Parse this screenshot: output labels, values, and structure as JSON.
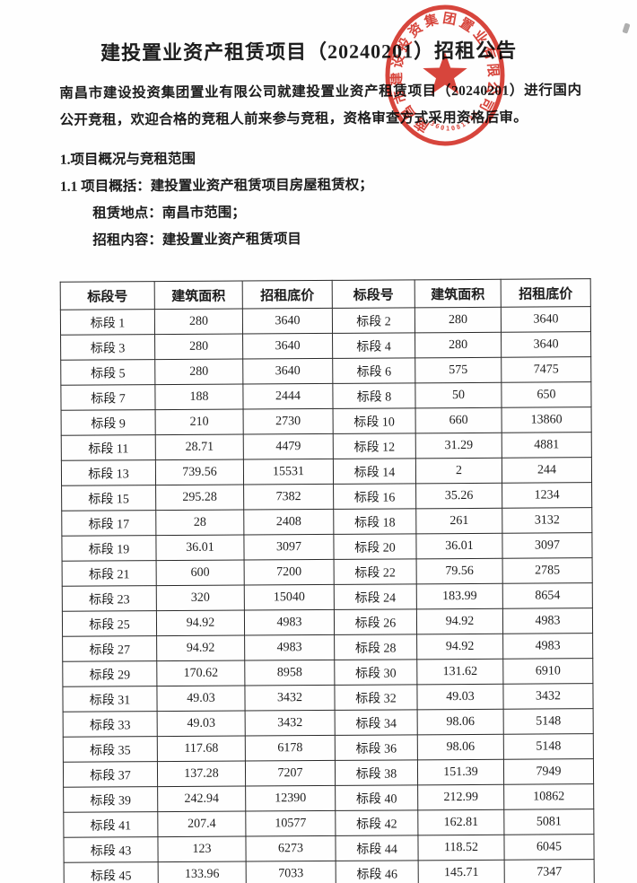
{
  "document": {
    "title": "建投置业资产租赁项目（20240201）招租公告",
    "intro": "南昌市建设投资集团置业有限公司就建投置业资产租赁项目（20240201）进行国内公开竞租，欢迎合格的竞租人前来参与竞租，资格审查方式采用资格后审。",
    "section_heading": "1.项目概况与竞租范围",
    "items": [
      "1.1 项目概括：建投置业资产租赁项目房屋租赁权；",
      "租赁地点：南昌市范围；",
      "招租内容：建投置业资产租赁项目"
    ]
  },
  "stamp": {
    "ring_text": "南昌市建设投资集团置业有限公司",
    "serial": "3601081185",
    "color": "#d5352b"
  },
  "table": {
    "headers": [
      "标段号",
      "建筑面积",
      "招租底价",
      "标段号",
      "建筑面积",
      "招租底价"
    ],
    "rows": [
      [
        "标段 1",
        "280",
        "3640",
        "标段 2",
        "280",
        "3640"
      ],
      [
        "标段 3",
        "280",
        "3640",
        "标段 4",
        "280",
        "3640"
      ],
      [
        "标段 5",
        "280",
        "3640",
        "标段 6",
        "575",
        "7475"
      ],
      [
        "标段 7",
        "188",
        "2444",
        "标段 8",
        "50",
        "650"
      ],
      [
        "标段 9",
        "210",
        "2730",
        "标段 10",
        "660",
        "13860"
      ],
      [
        "标段 11",
        "28.71",
        "4479",
        "标段 12",
        "31.29",
        "4881"
      ],
      [
        "标段 13",
        "739.56",
        "15531",
        "标段 14",
        "2",
        "244"
      ],
      [
        "标段 15",
        "295.28",
        "7382",
        "标段 16",
        "35.26",
        "1234"
      ],
      [
        "标段 17",
        "28",
        "2408",
        "标段 18",
        "261",
        "3132"
      ],
      [
        "标段 19",
        "36.01",
        "3097",
        "标段 20",
        "36.01",
        "3097"
      ],
      [
        "标段 21",
        "600",
        "7200",
        "标段 22",
        "79.56",
        "2785"
      ],
      [
        "标段 23",
        "320",
        "15040",
        "标段 24",
        "183.99",
        "8654"
      ],
      [
        "标段 25",
        "94.92",
        "4983",
        "标段 26",
        "94.92",
        "4983"
      ],
      [
        "标段 27",
        "94.92",
        "4983",
        "标段 28",
        "94.92",
        "4983"
      ],
      [
        "标段 29",
        "170.62",
        "8958",
        "标段 30",
        "131.62",
        "6910"
      ],
      [
        "标段 31",
        "49.03",
        "3432",
        "标段 32",
        "49.03",
        "3432"
      ],
      [
        "标段 33",
        "49.03",
        "3432",
        "标段 34",
        "98.06",
        "5148"
      ],
      [
        "标段 35",
        "117.68",
        "6178",
        "标段 36",
        "98.06",
        "5148"
      ],
      [
        "标段 37",
        "137.28",
        "7207",
        "标段 38",
        "151.39",
        "7949"
      ],
      [
        "标段 39",
        "242.94",
        "12390",
        "标段 40",
        "212.99",
        "10862"
      ],
      [
        "标段 41",
        "207.4",
        "10577",
        "标段 42",
        "162.81",
        "5081"
      ],
      [
        "标段 43",
        "123",
        "6273",
        "标段 44",
        "118.52",
        "6045"
      ],
      [
        "标段 45",
        "133.96",
        "7033",
        "标段 46",
        "145.71",
        "7347"
      ]
    ]
  }
}
